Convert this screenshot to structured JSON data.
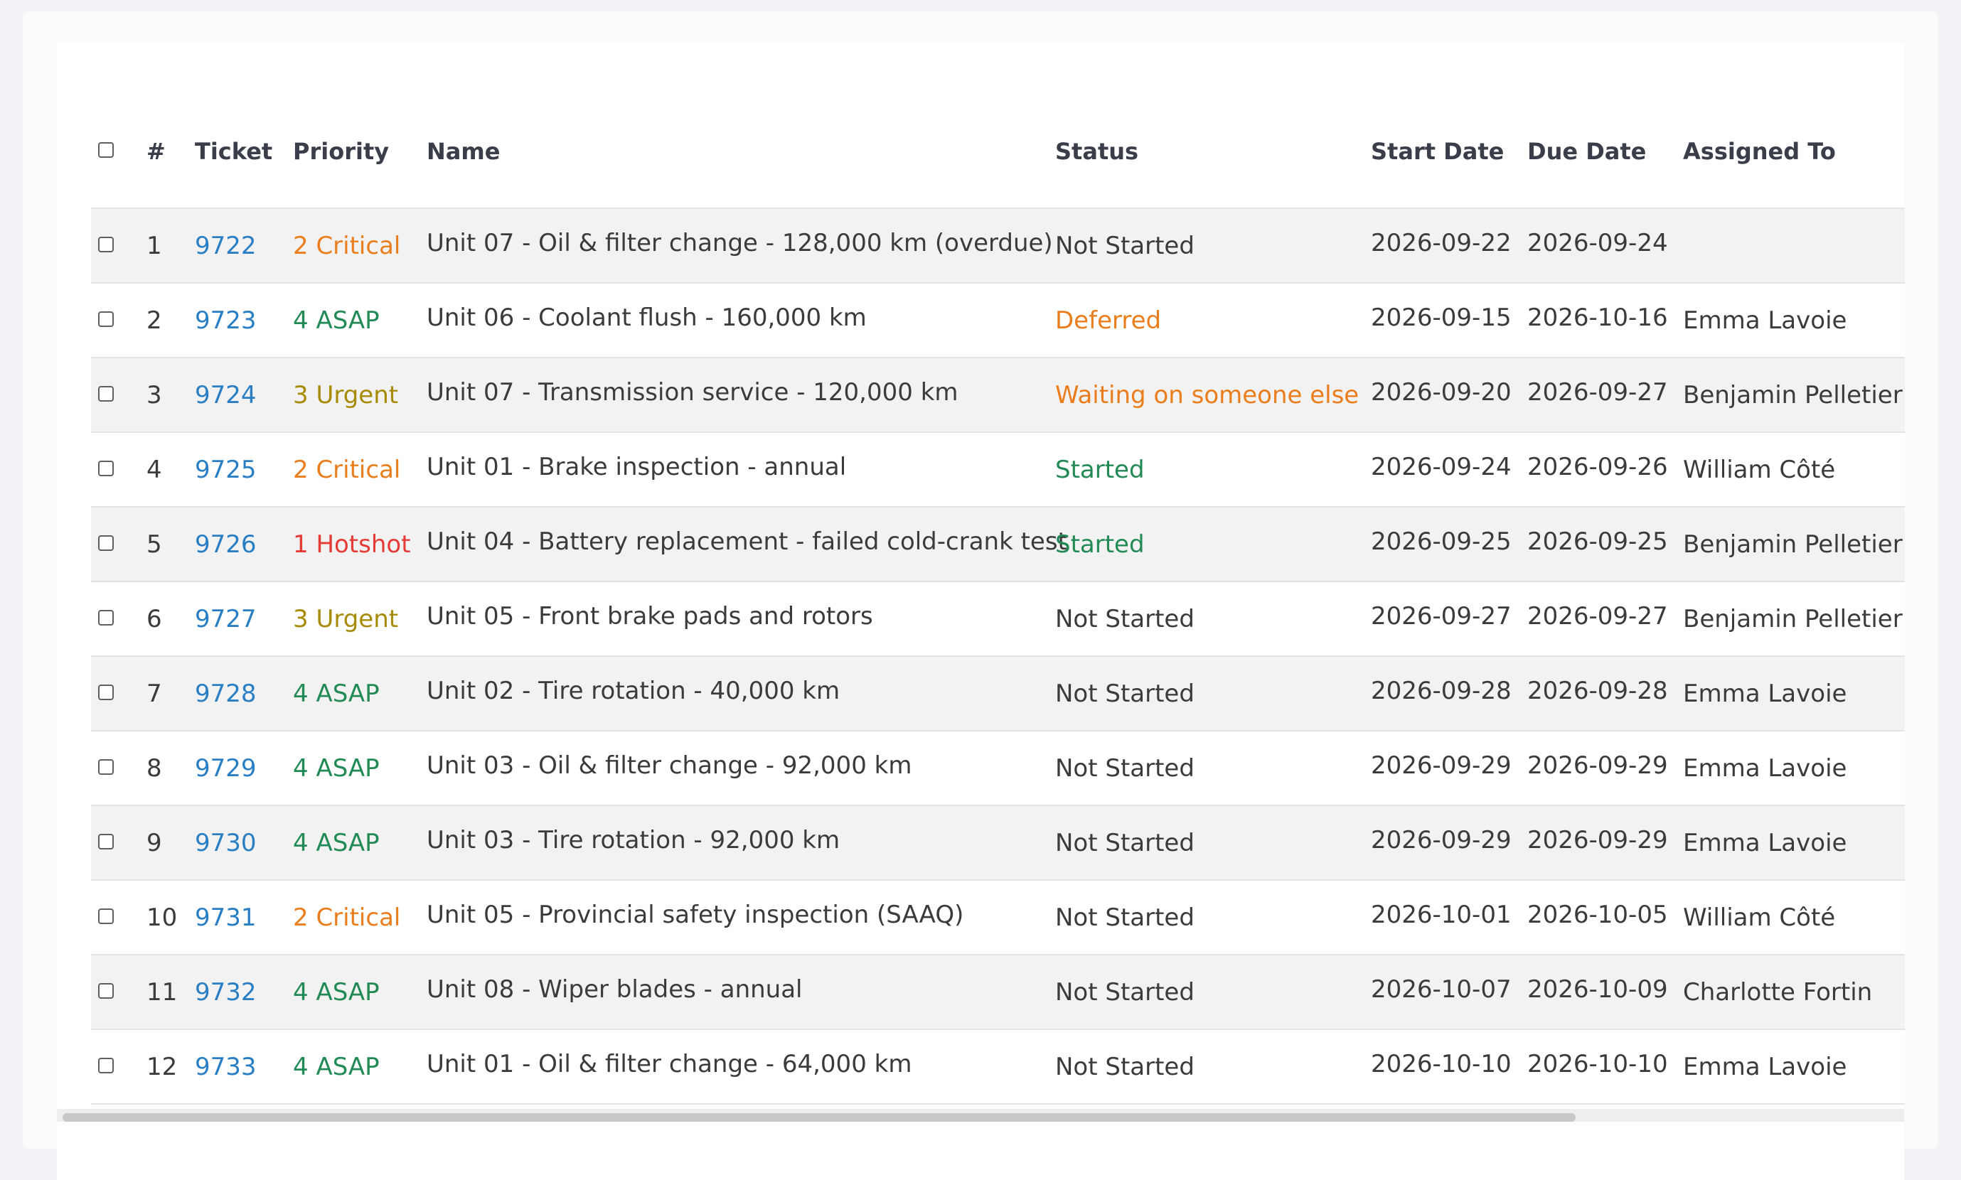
{
  "table": {
    "headers": {
      "number": "#",
      "ticket": "Ticket",
      "priority": "Priority",
      "name": "Name",
      "status": "Status",
      "start_date": "Start Date",
      "due_date": "Due Date",
      "assigned_to": "Assigned To"
    },
    "rows": [
      {
        "num": "1",
        "ticket": "9722",
        "priority": "2 Critical",
        "name": "Unit 07 - Oil & filter change - 128,000 km (overdue)",
        "status": "Not Started",
        "start": "2026-09-22",
        "due": "2026-09-24",
        "assigned": ""
      },
      {
        "num": "2",
        "ticket": "9723",
        "priority": "4 ASAP",
        "name": "Unit 06 - Coolant flush - 160,000 km",
        "status": "Deferred",
        "start": "2026-09-15",
        "due": "2026-10-16",
        "assigned": "Emma Lavoie"
      },
      {
        "num": "3",
        "ticket": "9724",
        "priority": "3 Urgent",
        "name": "Unit 07 - Transmission service - 120,000 km",
        "status": "Waiting on someone else",
        "start": "2026-09-20",
        "due": "2026-09-27",
        "assigned": "Benjamin Pelletier"
      },
      {
        "num": "4",
        "ticket": "9725",
        "priority": "2 Critical",
        "name": "Unit 01 - Brake inspection - annual",
        "status": "Started",
        "start": "2026-09-24",
        "due": "2026-09-26",
        "assigned": "William Côté"
      },
      {
        "num": "5",
        "ticket": "9726",
        "priority": "1 Hotshot",
        "name": "Unit 04 - Battery replacement - failed cold-crank test",
        "status": "Started",
        "start": "2026-09-25",
        "due": "2026-09-25",
        "assigned": "Benjamin Pelletier"
      },
      {
        "num": "6",
        "ticket": "9727",
        "priority": "3 Urgent",
        "name": "Unit 05 - Front brake pads and rotors",
        "status": "Not Started",
        "start": "2026-09-27",
        "due": "2026-09-27",
        "assigned": "Benjamin Pelletier"
      },
      {
        "num": "7",
        "ticket": "9728",
        "priority": "4 ASAP",
        "name": "Unit 02 - Tire rotation - 40,000 km",
        "status": "Not Started",
        "start": "2026-09-28",
        "due": "2026-09-28",
        "assigned": "Emma Lavoie"
      },
      {
        "num": "8",
        "ticket": "9729",
        "priority": "4 ASAP",
        "name": "Unit 03 - Oil & filter change - 92,000 km",
        "status": "Not Started",
        "start": "2026-09-29",
        "due": "2026-09-29",
        "assigned": "Emma Lavoie"
      },
      {
        "num": "9",
        "ticket": "9730",
        "priority": "4 ASAP",
        "name": "Unit 03 - Tire rotation - 92,000 km",
        "status": "Not Started",
        "start": "2026-09-29",
        "due": "2026-09-29",
        "assigned": "Emma Lavoie"
      },
      {
        "num": "10",
        "ticket": "9731",
        "priority": "2 Critical",
        "name": "Unit 05 - Provincial safety inspection (SAAQ)",
        "status": "Not Started",
        "start": "2026-10-01",
        "due": "2026-10-05",
        "assigned": "William Côté"
      },
      {
        "num": "11",
        "ticket": "9732",
        "priority": "4 ASAP",
        "name": "Unit 08 - Wiper blades - annual",
        "status": "Not Started",
        "start": "2026-10-07",
        "due": "2026-10-09",
        "assigned": "Charlotte Fortin"
      },
      {
        "num": "12",
        "ticket": "9733",
        "priority": "4 ASAP",
        "name": "Unit 01 - Oil & filter change - 64,000 km",
        "status": "Not Started",
        "start": "2026-10-10",
        "due": "2026-10-10",
        "assigned": "Emma Lavoie"
      }
    ]
  },
  "colors": {
    "link": "#2a7fc4",
    "priority_critical": "#ea7d1c",
    "priority_asap": "#228a55",
    "priority_urgent": "#a78b06",
    "priority_hotshot": "#e43b36",
    "status_deferred": "#ea7d1c",
    "status_waiting": "#ea7d1c",
    "status_started": "#228a55",
    "row_stripe": "#f2f2f2"
  }
}
